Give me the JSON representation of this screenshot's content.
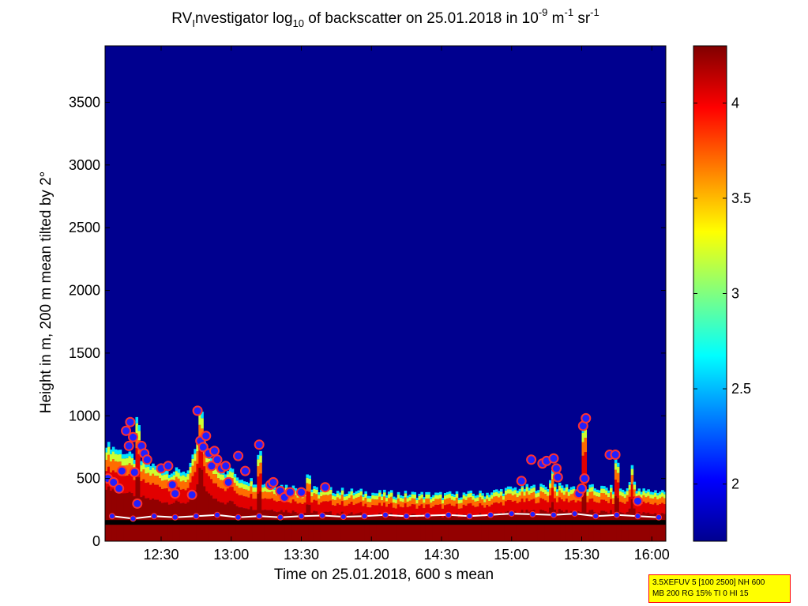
{
  "chart_data": {
    "type": "heatmap",
    "title": {
      "prefix": "RV",
      "sub1": "I",
      "part2": "nvestigator log",
      "sub2": "10",
      "part3": " of backscatter on 25.01.2018 in 10",
      "sup1": "-9",
      "part4": " m",
      "sup2": "-1",
      "part5": " sr",
      "sup3": "-1"
    },
    "xlabel": "Time on 25.01.2018, 600 s mean",
    "ylabel": "Height in m, 200 m mean tilted by 2°",
    "x_range_hours": [
      12.1,
      16.1
    ],
    "y_range_m": [
      0,
      3950
    ],
    "x_ticks": [
      {
        "value": 12.5,
        "label": "12:30"
      },
      {
        "value": 13.0,
        "label": "13:00"
      },
      {
        "value": 13.5,
        "label": "13:30"
      },
      {
        "value": 14.0,
        "label": "14:00"
      },
      {
        "value": 14.5,
        "label": "14:30"
      },
      {
        "value": 15.0,
        "label": "15:00"
      },
      {
        "value": 15.5,
        "label": "15:30"
      },
      {
        "value": 16.0,
        "label": "16:00"
      }
    ],
    "y_ticks": [
      {
        "value": 0,
        "label": "0"
      },
      {
        "value": 500,
        "label": "500"
      },
      {
        "value": 1000,
        "label": "1000"
      },
      {
        "value": 1500,
        "label": "1500"
      },
      {
        "value": 2000,
        "label": "2000"
      },
      {
        "value": 2500,
        "label": "2500"
      },
      {
        "value": 3000,
        "label": "3000"
      },
      {
        "value": 3500,
        "label": "3500"
      }
    ],
    "colorbar": {
      "range": [
        1.7,
        4.3
      ],
      "ticks": [
        {
          "value": 2,
          "label": "2"
        },
        {
          "value": 2.5,
          "label": "2.5"
        },
        {
          "value": 3,
          "label": "3"
        },
        {
          "value": 3.5,
          "label": "3.5"
        },
        {
          "value": 4,
          "label": "4"
        }
      ],
      "colormap": "jet"
    },
    "background_value": 1.72,
    "layer_top_height_m": [
      {
        "t": 12.1,
        "h": 780
      },
      {
        "t": 12.25,
        "h": 700
      },
      {
        "t": 12.4,
        "h": 620
      },
      {
        "t": 12.55,
        "h": 560
      },
      {
        "t": 12.7,
        "h": 560
      },
      {
        "t": 12.78,
        "h": 900
      },
      {
        "t": 12.85,
        "h": 650
      },
      {
        "t": 13.0,
        "h": 520
      },
      {
        "t": 13.2,
        "h": 470
      },
      {
        "t": 13.5,
        "h": 420
      },
      {
        "t": 13.8,
        "h": 400
      },
      {
        "t": 14.1,
        "h": 380
      },
      {
        "t": 14.5,
        "h": 370
      },
      {
        "t": 14.8,
        "h": 380
      },
      {
        "t": 15.0,
        "h": 420
      },
      {
        "t": 15.3,
        "h": 440
      },
      {
        "t": 15.5,
        "h": 430
      },
      {
        "t": 15.7,
        "h": 420
      },
      {
        "t": 15.9,
        "h": 400
      },
      {
        "t": 16.1,
        "h": 400
      }
    ],
    "spikes": [
      {
        "t": 12.33,
        "h": 1000
      },
      {
        "t": 12.78,
        "h": 1100
      },
      {
        "t": 13.0,
        "h": 650
      },
      {
        "t": 13.2,
        "h": 780
      },
      {
        "t": 13.55,
        "h": 600
      },
      {
        "t": 15.29,
        "h": 600
      },
      {
        "t": 15.52,
        "h": 980
      },
      {
        "t": 15.75,
        "h": 700
      },
      {
        "t": 15.86,
        "h": 620
      }
    ],
    "aerosol_layer_points": [
      {
        "t": 12.12,
        "h": 500
      },
      {
        "t": 12.16,
        "h": 470
      },
      {
        "t": 12.2,
        "h": 420
      },
      {
        "t": 12.22,
        "h": 560
      },
      {
        "t": 12.25,
        "h": 880
      },
      {
        "t": 12.27,
        "h": 760
      },
      {
        "t": 12.28,
        "h": 950
      },
      {
        "t": 12.3,
        "h": 830
      },
      {
        "t": 12.31,
        "h": 550
      },
      {
        "t": 12.33,
        "h": 300
      },
      {
        "t": 12.36,
        "h": 760
      },
      {
        "t": 12.38,
        "h": 700
      },
      {
        "t": 12.4,
        "h": 650
      },
      {
        "t": 12.5,
        "h": 580
      },
      {
        "t": 12.55,
        "h": 600
      },
      {
        "t": 12.58,
        "h": 450
      },
      {
        "t": 12.6,
        "h": 380
      },
      {
        "t": 12.72,
        "h": 370
      },
      {
        "t": 12.76,
        "h": 1040
      },
      {
        "t": 12.78,
        "h": 800
      },
      {
        "t": 12.8,
        "h": 750
      },
      {
        "t": 12.82,
        "h": 840
      },
      {
        "t": 12.84,
        "h": 700
      },
      {
        "t": 12.86,
        "h": 600
      },
      {
        "t": 12.88,
        "h": 720
      },
      {
        "t": 12.9,
        "h": 650
      },
      {
        "t": 12.93,
        "h": 580
      },
      {
        "t": 12.96,
        "h": 600
      },
      {
        "t": 12.98,
        "h": 470
      },
      {
        "t": 13.05,
        "h": 680
      },
      {
        "t": 13.1,
        "h": 560
      },
      {
        "t": 13.2,
        "h": 770
      },
      {
        "t": 13.28,
        "h": 450
      },
      {
        "t": 13.3,
        "h": 470
      },
      {
        "t": 13.35,
        "h": 400
      },
      {
        "t": 13.38,
        "h": 350
      },
      {
        "t": 13.42,
        "h": 390
      },
      {
        "t": 13.5,
        "h": 390
      },
      {
        "t": 13.67,
        "h": 430
      },
      {
        "t": 15.07,
        "h": 480
      },
      {
        "t": 15.14,
        "h": 650
      },
      {
        "t": 15.22,
        "h": 620
      },
      {
        "t": 15.25,
        "h": 640
      },
      {
        "t": 15.3,
        "h": 660
      },
      {
        "t": 15.32,
        "h": 580
      },
      {
        "t": 15.33,
        "h": 510
      },
      {
        "t": 15.48,
        "h": 380
      },
      {
        "t": 15.5,
        "h": 420
      },
      {
        "t": 15.51,
        "h": 920
      },
      {
        "t": 15.53,
        "h": 980
      },
      {
        "t": 15.52,
        "h": 500
      },
      {
        "t": 15.7,
        "h": 690
      },
      {
        "t": 15.74,
        "h": 690
      },
      {
        "t": 15.9,
        "h": 320
      }
    ],
    "boundary_layer_points": [
      {
        "t": 12.15,
        "h": 200
      },
      {
        "t": 12.3,
        "h": 180
      },
      {
        "t": 12.45,
        "h": 200
      },
      {
        "t": 12.6,
        "h": 190
      },
      {
        "t": 12.75,
        "h": 200
      },
      {
        "t": 12.9,
        "h": 210
      },
      {
        "t": 13.05,
        "h": 190
      },
      {
        "t": 13.2,
        "h": 200
      },
      {
        "t": 13.35,
        "h": 190
      },
      {
        "t": 13.5,
        "h": 200
      },
      {
        "t": 13.65,
        "h": 205
      },
      {
        "t": 13.8,
        "h": 195
      },
      {
        "t": 13.95,
        "h": 200
      },
      {
        "t": 14.1,
        "h": 210
      },
      {
        "t": 14.25,
        "h": 200
      },
      {
        "t": 14.4,
        "h": 205
      },
      {
        "t": 14.55,
        "h": 210
      },
      {
        "t": 14.7,
        "h": 200
      },
      {
        "t": 14.85,
        "h": 210
      },
      {
        "t": 15.0,
        "h": 220
      },
      {
        "t": 15.15,
        "h": 215
      },
      {
        "t": 15.3,
        "h": 210
      },
      {
        "t": 15.45,
        "h": 220
      },
      {
        "t": 15.6,
        "h": 200
      },
      {
        "t": 15.75,
        "h": 210
      },
      {
        "t": 15.9,
        "h": 200
      },
      {
        "t": 16.05,
        "h": 190
      }
    ],
    "ground_line_height_m": 150
  },
  "info_box": {
    "line1": "3.5XEFUV 5 [100 2500] NH 600",
    "line2": "MB 200 RG 15% TI 0 HI 15"
  },
  "colors": {
    "marker_fill": "#2020ff",
    "marker_stroke": "#ff3030",
    "info_background": "#ffff00",
    "info_border": "#ff0000"
  }
}
